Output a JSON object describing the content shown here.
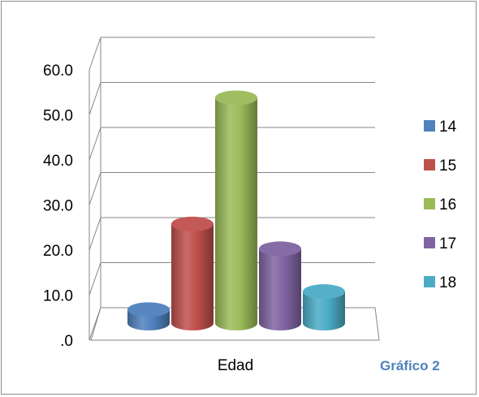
{
  "caption": "Gráfico 2",
  "chart_data": {
    "type": "bar",
    "style": "3d-cylinder",
    "categories": [
      "Edad"
    ],
    "series": [
      {
        "name": "14",
        "values": [
          3.0
        ],
        "color": "#4f81bd"
      },
      {
        "name": "15",
        "values": [
          22.0
        ],
        "color": "#c0504d"
      },
      {
        "name": "16",
        "values": [
          50.0
        ],
        "color": "#9bbb59"
      },
      {
        "name": "17",
        "values": [
          16.5
        ],
        "color": "#8064a2"
      },
      {
        "name": "18",
        "values": [
          7.0
        ],
        "color": "#4bacc6"
      }
    ],
    "ylim": [
      0,
      60
    ],
    "yticks": [
      ".0",
      "10.0",
      "20.0",
      "30.0",
      "40.0",
      "50.0",
      "60.0"
    ],
    "grid": true,
    "legend": "right"
  }
}
